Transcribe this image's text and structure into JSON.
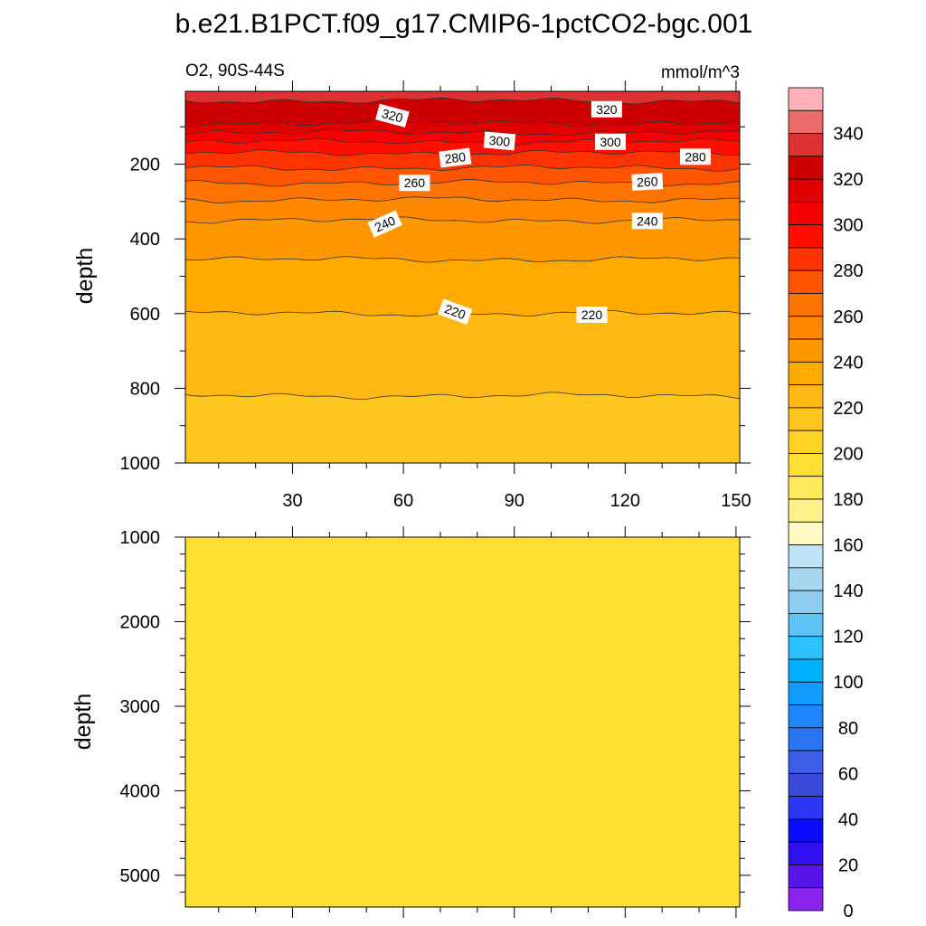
{
  "title": "b.e21.B1PCT.f09_g17.CMIP6-1pctCO2-bgc.001",
  "colors": {
    "contour_line": "#333333",
    "frame": "#000000",
    "label_box": "#ffffff"
  },
  "chart_data": [
    {
      "type": "heatmap",
      "panel": "upper",
      "left_string": "O2, 90S-44S",
      "right_string": "mmol/m^3",
      "xlabel": "",
      "ylabel": "depth",
      "xlim": [
        1,
        151
      ],
      "ylim": [
        1000,
        5
      ],
      "y_reversed": true,
      "xticks": [
        30,
        60,
        90,
        120,
        150
      ],
      "xticklabels": [
        "30",
        "60",
        "90",
        "120",
        "150"
      ],
      "yticks": [
        200,
        400,
        600,
        800,
        1000
      ],
      "yticklabels": [
        "200",
        "400",
        "600",
        "800",
        "1000"
      ],
      "contour_levels": [
        {
          "value": 320,
          "depth": 30
        },
        {
          "value": 310,
          "depth": 90
        },
        {
          "value": 300,
          "depth": 115
        },
        {
          "value": 290,
          "depth": 140
        },
        {
          "value": 280,
          "depth": 170
        },
        {
          "value": 270,
          "depth": 210
        },
        {
          "value": 260,
          "depth": 250
        },
        {
          "value": 250,
          "depth": 295
        },
        {
          "value": 240,
          "depth": 350
        },
        {
          "value": 230,
          "depth": 455
        },
        {
          "value": 220,
          "depth": 600
        },
        {
          "value": 210,
          "depth": 820
        }
      ],
      "contour_labels": [
        {
          "text": "320",
          "x": 57,
          "depth": 70,
          "angle": 15
        },
        {
          "text": "320",
          "x": 115,
          "depth": 53,
          "angle": 0
        },
        {
          "text": "300",
          "x": 86,
          "depth": 138,
          "angle": 5
        },
        {
          "text": "300",
          "x": 116,
          "depth": 140,
          "angle": 0
        },
        {
          "text": "280",
          "x": 74,
          "depth": 183,
          "angle": -7
        },
        {
          "text": "280",
          "x": 139,
          "depth": 180,
          "angle": 0
        },
        {
          "text": "260",
          "x": 63,
          "depth": 250,
          "angle": 0
        },
        {
          "text": "260",
          "x": 126,
          "depth": 247,
          "angle": -3
        },
        {
          "text": "240",
          "x": 55,
          "depth": 360,
          "angle": -24
        },
        {
          "text": "240",
          "x": 126,
          "depth": 352,
          "angle": 0
        },
        {
          "text": "220",
          "x": 74,
          "depth": 595,
          "angle": 20
        },
        {
          "text": "220",
          "x": 111,
          "depth": 603,
          "angle": 0
        }
      ]
    },
    {
      "type": "heatmap",
      "panel": "lower",
      "xlabel": "",
      "ylabel": "depth",
      "xlim": [
        1,
        151
      ],
      "ylim": [
        1000,
        5375
      ],
      "y_reversed": true,
      "yticks": [
        1000,
        2000,
        3000,
        4000,
        5000
      ],
      "yticklabels": [
        "1000",
        "2000",
        "3000",
        "4000",
        "5000"
      ],
      "fill_value": 200,
      "fill_color": "#ffe033"
    }
  ],
  "colorbar": {
    "labels": [
      "340",
      "320",
      "300",
      "280",
      "260",
      "240",
      "220",
      "200",
      "180",
      "160",
      "140",
      "120",
      "100",
      "80",
      "60",
      "40",
      "20",
      "0"
    ],
    "boxes_top_to_bottom": [
      "#ffb3b8",
      "#eb6b6b",
      "#dc3232",
      "#cc0000",
      "#e00000",
      "#f50000",
      "#ff0f00",
      "#ff3300",
      "#ff5500",
      "#ff7400",
      "#ff8800",
      "#ff9800",
      "#ffaa00",
      "#ffb814",
      "#ffc61f",
      "#ffd324",
      "#ffe033",
      "#ffe95c",
      "#fff28c",
      "#fffac4",
      "#bfe2f4",
      "#a6d6f0",
      "#8fcdf0",
      "#5ec3f4",
      "#2dc2ff",
      "#00b0ff",
      "#149bff",
      "#1f86ff",
      "#2a74f0",
      "#3d5fe8",
      "#3a4ad9",
      "#2b37f2",
      "#0a0aff",
      "#3010ee",
      "#5a14ea",
      "#8a23ec"
    ]
  }
}
